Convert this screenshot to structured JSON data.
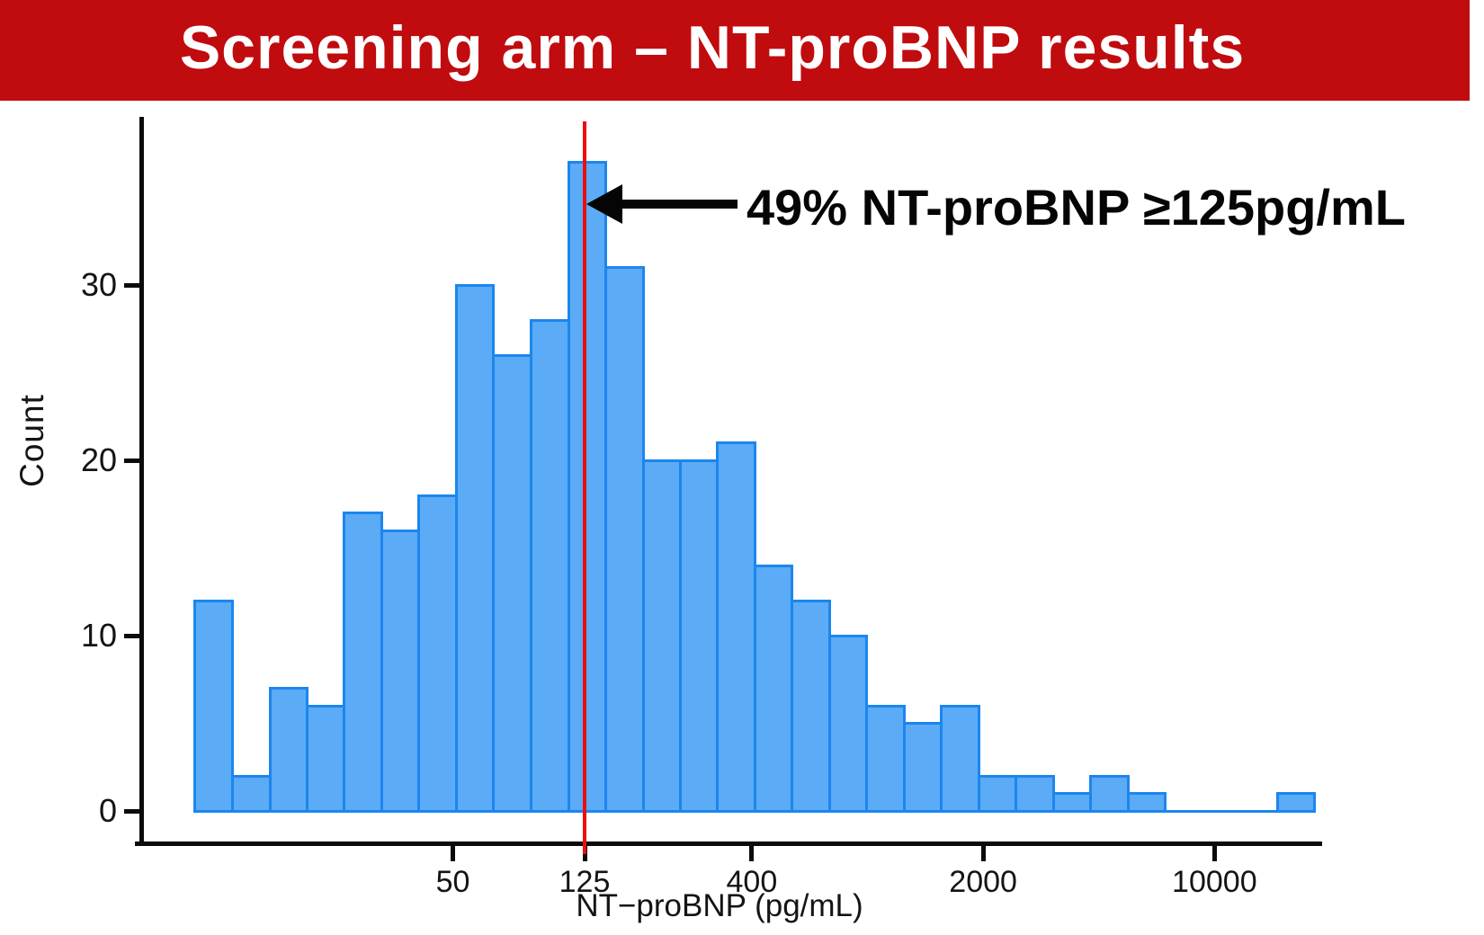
{
  "banner": {
    "title": "Screening arm – NT-proBNP results",
    "bg_color": "#C00B0F",
    "text_color": "#FFFFFF"
  },
  "chart_data": {
    "type": "bar",
    "subtype": "histogram",
    "x_scale": "log10",
    "title": "",
    "xlabel": "NT−proBNP (pg/mL)",
    "ylabel": "Count",
    "x_ticks": [
      50,
      125,
      400,
      2000,
      10000
    ],
    "y_ticks": [
      0,
      10,
      20,
      30
    ],
    "ylim": [
      0,
      38
    ],
    "grid": "off",
    "legend": "none",
    "bar_fill_color": "#5BABF7",
    "bar_stroke_color": "#1C86EE",
    "counts": [
      12,
      2,
      7,
      6,
      17,
      16,
      18,
      30,
      26,
      28,
      37,
      31,
      20,
      20,
      21,
      14,
      12,
      10,
      6,
      5,
      6,
      2,
      2,
      1,
      2,
      1,
      0,
      0,
      0,
      1
    ],
    "approx_bin_edges_pg_ml": [
      8.3,
      10.8,
      14,
      18.1,
      23.5,
      30.5,
      39.5,
      51.2,
      66.4,
      86.1,
      112,
      145,
      188,
      243,
      315,
      409,
      530,
      687,
      891,
      1156,
      1498,
      1942,
      2518,
      3265,
      4233,
      5488,
      7116,
      9226,
      11961,
      15508,
      20106
    ],
    "reference_line": {
      "x_value": 125,
      "color": "#EC0E0E"
    },
    "annotation": {
      "text": "49% NT-proBNP ≥125pg/mL",
      "arrow_direction": "left",
      "points_to_x_value": 125
    }
  }
}
